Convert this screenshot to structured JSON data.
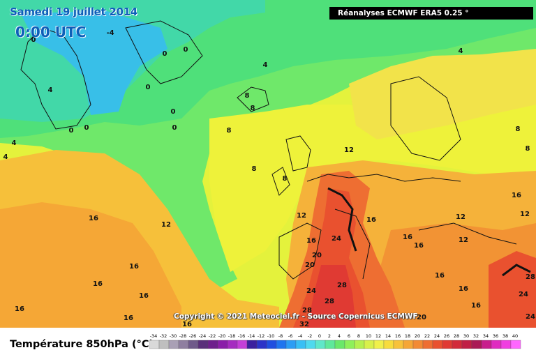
{
  "header": {
    "date": "Samedi 19 juillet 2014",
    "time": "0:00 UTC",
    "source": "Réanalyses ECMWF ERA5 0.25 °"
  },
  "copyright": "Copyright © 2021 Meteociel.fr - Source Copernicus ECMWF",
  "legend": {
    "title": "Température 850hPa (°C)",
    "ticks": [
      "-34",
      "-32",
      "-30",
      "-28",
      "-26",
      "-24",
      "-22",
      "-20",
      "-18",
      "-16",
      "-14",
      "-12",
      "-10",
      "-8",
      "-6",
      "-4",
      "-2",
      "0",
      "2",
      "4",
      "6",
      "8",
      "10",
      "12",
      "14",
      "16",
      "18",
      "20",
      "22",
      "24",
      "26",
      "28",
      "30",
      "32",
      "34",
      "36",
      "38",
      "40"
    ],
    "colors": [
      "#d9d9d9",
      "#bfbfbf",
      "#a9a0b5",
      "#8f7fa0",
      "#6f5a8a",
      "#5a2f7a",
      "#6e1f8c",
      "#8a1ea8",
      "#a52cc0",
      "#c43fd8",
      "#3b1f9e",
      "#2b33c8",
      "#1f4fe0",
      "#1f75ef",
      "#2b9df5",
      "#38bff5",
      "#4fd9ee",
      "#5fe7c9",
      "#5fe89a",
      "#6ae86a",
      "#8ef05a",
      "#b5f04f",
      "#d8f04a",
      "#f0f04a",
      "#f7dc3c",
      "#f7c23a",
      "#f5a636",
      "#f28a34",
      "#ee6e32",
      "#e9512f",
      "#e03a33",
      "#d22a3a",
      "#c01f45",
      "#aa1a55",
      "#c81e8c",
      "#e02cc0",
      "#f03ee0",
      "#ff66ff"
    ]
  },
  "contour_labels": [
    {
      "text": "-4"
    },
    {
      "text": "0"
    },
    {
      "text": "0"
    },
    {
      "text": "0"
    },
    {
      "text": "0"
    },
    {
      "text": "0"
    },
    {
      "text": "0"
    },
    {
      "text": "0"
    },
    {
      "text": "0"
    },
    {
      "text": "4"
    },
    {
      "text": "4"
    },
    {
      "text": "4"
    },
    {
      "text": "4"
    },
    {
      "text": "4"
    },
    {
      "text": "8"
    },
    {
      "text": "8"
    },
    {
      "text": "8"
    },
    {
      "text": "8"
    },
    {
      "text": "8"
    },
    {
      "text": "8"
    },
    {
      "text": "8"
    },
    {
      "text": "12"
    },
    {
      "text": "12"
    },
    {
      "text": "12"
    },
    {
      "text": "12"
    },
    {
      "text": "12"
    },
    {
      "text": "12"
    },
    {
      "text": "16"
    },
    {
      "text": "16"
    },
    {
      "text": "16"
    },
    {
      "text": "16"
    },
    {
      "text": "16"
    },
    {
      "text": "16"
    },
    {
      "text": "16"
    },
    {
      "text": "16"
    },
    {
      "text": "16"
    },
    {
      "text": "16"
    },
    {
      "text": "16"
    },
    {
      "text": "16"
    },
    {
      "text": "16"
    },
    {
      "text": "16"
    },
    {
      "text": "16"
    },
    {
      "text": "20"
    },
    {
      "text": "20"
    },
    {
      "text": "20"
    },
    {
      "text": "24"
    },
    {
      "text": "24"
    },
    {
      "text": "24"
    },
    {
      "text": "24"
    },
    {
      "text": "28"
    },
    {
      "text": "28"
    },
    {
      "text": "28"
    },
    {
      "text": "28"
    },
    {
      "text": "32"
    }
  ]
}
